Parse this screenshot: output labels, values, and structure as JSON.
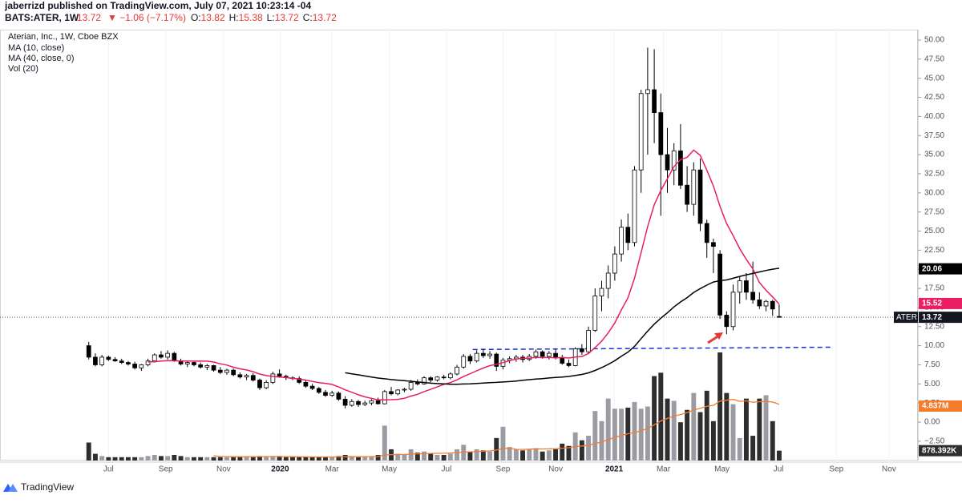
{
  "header": {
    "publisher": "jaberrizd published on TradingView.com, July 07, 2021 10:23:14 -04",
    "symbol": "BATS:ATER, 1W",
    "price": "13.72",
    "change": "▼ −1.06 (−7.17%)",
    "ohlc": [
      {
        "k": "O:",
        "v": "13.82"
      },
      {
        "k": "H:",
        "v": "15.38"
      },
      {
        "k": "L:",
        "v": "13.72"
      },
      {
        "k": "C:",
        "v": "13.72"
      }
    ]
  },
  "footer": {
    "brand": "TradingView"
  },
  "chart_data": {
    "type": "candlestick",
    "title": "Aterian, Inc., 1W, Cboe BZX",
    "legend": [
      "MA (10, close)",
      "MA (40, close, 0)",
      "Vol (20)"
    ],
    "candles": {
      "open": [
        10.0,
        8.5,
        7.5,
        8.5,
        8.2,
        8.0,
        7.8,
        7.6,
        7.1,
        7.5,
        8.0,
        8.8,
        8.5,
        9.0,
        8.0,
        7.6,
        7.8,
        7.5,
        7.2,
        7.4,
        6.8,
        6.5,
        6.8,
        6.2,
        5.9,
        6.1,
        5.5,
        4.5,
        5.2,
        6.3,
        6.0,
        5.8,
        5.7,
        5.2,
        4.7,
        4.4,
        3.9,
        3.5,
        3.8,
        3.0,
        2.2,
        2.7,
        2.3,
        2.5,
        2.8,
        2.4,
        4.0,
        3.7,
        4.2,
        4.3,
        5.2,
        5.0,
        5.8,
        5.5,
        5.9,
        5.8,
        6.3,
        7.2,
        8.6,
        8.0,
        9.0,
        8.7,
        8.9,
        7.3,
        8.1,
        8.3,
        8.5,
        8.2,
        8.6,
        9.2,
        8.6,
        9.0,
        8.4,
        7.7,
        7.4,
        9.6,
        9.2,
        12.0,
        16.5,
        17.5,
        19.5,
        22.0,
        25.5,
        23.5,
        33.0,
        43.0,
        43.5,
        40.5,
        35.0,
        33.0,
        35.5,
        31.0,
        28.5,
        33.0,
        26.0,
        23.5,
        22.0,
        14.0,
        12.5,
        17.0,
        18.5,
        17.0,
        16.0,
        15.2,
        15.8,
        13.82
      ],
      "high": [
        10.5,
        9.0,
        8.8,
        8.7,
        8.5,
        8.3,
        8.0,
        7.9,
        7.6,
        8.3,
        9.0,
        9.3,
        9.4,
        9.2,
        8.3,
        8.0,
        8.0,
        7.8,
        7.6,
        7.5,
        7.2,
        7.0,
        7.0,
        6.5,
        6.3,
        6.4,
        5.7,
        5.5,
        6.6,
        6.9,
        6.2,
        6.0,
        6.0,
        5.5,
        5.0,
        4.6,
        4.2,
        4.1,
        4.0,
        3.4,
        3.0,
        2.9,
        2.8,
        3.0,
        3.2,
        4.2,
        4.6,
        4.3,
        4.5,
        5.5,
        5.6,
        6.0,
        6.0,
        6.0,
        6.2,
        6.5,
        7.5,
        8.9,
        8.9,
        9.4,
        9.6,
        9.3,
        9.1,
        8.4,
        8.6,
        8.8,
        8.8,
        8.9,
        9.5,
        9.4,
        9.3,
        9.6,
        8.8,
        8.2,
        9.8,
        10.2,
        12.5,
        17.5,
        18.5,
        20.5,
        23.0,
        26.5,
        27.3,
        33.5,
        43.5,
        49.0,
        48.8,
        43.0,
        38.5,
        36.5,
        39.0,
        33.5,
        34.0,
        34.5,
        26.5,
        24.0,
        22.5,
        14.5,
        18.0,
        19.0,
        19.5,
        21.0,
        17.0,
        16.0,
        16.0,
        15.38
      ],
      "low": [
        8.2,
        7.3,
        7.3,
        8.0,
        7.9,
        7.6,
        7.4,
        6.9,
        6.7,
        7.3,
        7.8,
        8.3,
        8.2,
        7.9,
        7.4,
        7.2,
        7.3,
        7.0,
        6.8,
        6.6,
        6.3,
        6.2,
        6.0,
        5.7,
        5.5,
        5.3,
        4.2,
        4.3,
        5.0,
        5.8,
        5.5,
        5.5,
        5.0,
        4.5,
        4.2,
        3.7,
        3.3,
        3.3,
        2.8,
        1.8,
        2.0,
        2.0,
        2.1,
        2.2,
        2.3,
        2.3,
        3.5,
        3.5,
        3.9,
        4.1,
        4.8,
        4.9,
        5.2,
        5.3,
        5.6,
        5.6,
        6.1,
        7.0,
        7.6,
        7.8,
        8.4,
        8.3,
        6.7,
        6.9,
        7.7,
        7.9,
        7.8,
        8.0,
        8.3,
        8.3,
        8.2,
        8.2,
        7.5,
        7.2,
        7.3,
        8.8,
        9.0,
        11.8,
        14.5,
        16.2,
        18.5,
        21.0,
        22.5,
        23.0,
        30.0,
        35.0,
        36.5,
        27.0,
        30.0,
        31.0,
        30.5,
        27.5,
        27.0,
        25.0,
        21.5,
        19.5,
        13.5,
        11.5,
        12.0,
        15.5,
        16.0,
        15.5,
        14.8,
        14.5,
        13.9,
        13.72
      ],
      "close": [
        8.5,
        7.5,
        8.5,
        8.2,
        8.0,
        7.8,
        7.6,
        7.1,
        7.5,
        8.0,
        8.8,
        8.5,
        9.0,
        8.0,
        7.6,
        7.8,
        7.5,
        7.2,
        7.4,
        6.8,
        6.5,
        6.8,
        6.2,
        5.9,
        6.1,
        5.5,
        4.5,
        5.2,
        6.3,
        6.0,
        5.8,
        5.7,
        5.2,
        4.7,
        4.4,
        3.9,
        3.5,
        3.8,
        3.0,
        2.2,
        2.7,
        2.3,
        2.5,
        2.8,
        2.4,
        4.0,
        3.7,
        4.2,
        4.3,
        5.2,
        5.0,
        5.8,
        5.5,
        5.9,
        5.8,
        6.3,
        7.2,
        8.6,
        8.0,
        9.0,
        8.7,
        8.9,
        7.3,
        8.1,
        8.3,
        8.5,
        8.2,
        8.6,
        9.2,
        8.6,
        9.0,
        8.4,
        7.7,
        7.4,
        9.6,
        9.2,
        12.0,
        16.5,
        17.5,
        19.5,
        22.0,
        25.5,
        23.5,
        33.0,
        43.0,
        43.5,
        40.5,
        35.0,
        33.0,
        35.5,
        31.0,
        28.5,
        33.0,
        26.0,
        23.5,
        23.0,
        14.0,
        12.5,
        17.0,
        18.5,
        17.0,
        16.0,
        15.2,
        15.8,
        14.8,
        13.72
      ]
    },
    "volume": [
      1.6,
      0.6,
      0.4,
      0.3,
      0.3,
      0.3,
      0.3,
      0.3,
      0.3,
      0.4,
      0.5,
      0.4,
      0.4,
      0.5,
      0.4,
      0.3,
      0.3,
      0.3,
      0.3,
      0.3,
      0.3,
      0.3,
      0.3,
      0.3,
      0.3,
      0.3,
      0.4,
      0.4,
      0.4,
      0.4,
      0.3,
      0.3,
      0.3,
      0.3,
      0.3,
      0.3,
      0.3,
      0.3,
      0.4,
      0.5,
      0.4,
      0.3,
      0.3,
      0.4,
      0.5,
      3.1,
      1.0,
      0.6,
      0.5,
      1.0,
      0.7,
      0.8,
      0.6,
      0.5,
      0.5,
      0.6,
      1.0,
      1.4,
      0.8,
      1.0,
      0.9,
      0.8,
      2.0,
      3.0,
      1.2,
      1.0,
      0.9,
      1.0,
      1.1,
      0.8,
      0.9,
      1.0,
      1.5,
      1.3,
      2.5,
      1.8,
      2.2,
      4.4,
      3.5,
      5.5,
      4.6,
      4.6,
      4.7,
      5.2,
      4.6,
      4.8,
      7.5,
      7.8,
      5.5,
      5.3,
      3.4,
      4.5,
      6.0,
      4.3,
      6.2,
      3.5,
      9.6,
      6.0,
      5.0,
      2.0,
      5.5,
      2.2,
      5.5,
      5.8,
      3.5,
      0.878392
    ],
    "colors": {
      "up_body": "#ffffff",
      "down_body": "#000000",
      "outline": "#000000",
      "up_volume": "#9b9ba3",
      "down_volume": "#2e2e2e",
      "ma10": "#e91e63",
      "ma40": "#000000",
      "vol_ma": "#f57c2b",
      "level": "#1f2bd6"
    },
    "ma_periods": {
      "ma10": 10,
      "ma40": 40,
      "vol_ma": 20
    },
    "value_tags": [
      {
        "value": 15.52,
        "color": "ma10"
      },
      {
        "value": 20.06,
        "color": "ma40"
      }
    ],
    "last_tag": {
      "name": "ATER",
      "value": 13.72
    },
    "vol_tags": [
      {
        "value": 4.837,
        "label": "4.837M",
        "color": "vol_ma"
      },
      {
        "value": 0.878392,
        "label": "878.392K",
        "color": "down_volume"
      }
    ],
    "level_line": {
      "x": [
        58.4,
        112.8
      ],
      "y": [
        9.5,
        9.8
      ]
    },
    "xlim": [
      -13.5,
      126.1
    ],
    "xticks": [
      {
        "value": 3,
        "label": "Jul"
      },
      {
        "value": 11.7,
        "label": "Sep"
      },
      {
        "value": 20.5,
        "label": "Nov"
      },
      {
        "value": 29.1,
        "label": "2020"
      },
      {
        "value": 37,
        "label": "Mar"
      },
      {
        "value": 45.7,
        "label": "May"
      },
      {
        "value": 54.4,
        "label": "Jul"
      },
      {
        "value": 63,
        "label": "Sep"
      },
      {
        "value": 71,
        "label": "Nov"
      },
      {
        "value": 79.9,
        "label": "2021"
      },
      {
        "value": 87.4,
        "label": "Mar"
      },
      {
        "value": 96.3,
        "label": "May"
      },
      {
        "value": 104.9,
        "label": "Jul"
      },
      {
        "value": 113.7,
        "label": "Sep"
      },
      {
        "value": 121.7,
        "label": "Nov"
      }
    ],
    "ylim": [
      -5.03,
      51.36
    ],
    "yticks": [
      {
        "value": 50,
        "label": "50.00"
      },
      {
        "value": 47.5,
        "label": "47.50"
      },
      {
        "value": 45,
        "label": "45.00"
      },
      {
        "value": 42.5,
        "label": "42.50"
      },
      {
        "value": 40,
        "label": "40.00"
      },
      {
        "value": 37.5,
        "label": "37.50"
      },
      {
        "value": 35,
        "label": "35.00"
      },
      {
        "value": 32.5,
        "label": "32.50"
      },
      {
        "value": 30,
        "label": "30.00"
      },
      {
        "value": 27.5,
        "label": "27.50"
      },
      {
        "value": 25,
        "label": "25.00"
      },
      {
        "value": 22.5,
        "label": "22.50"
      },
      {
        "value": 20,
        "label": "20.00"
      },
      {
        "value": 17.5,
        "label": "17.50"
      },
      {
        "value": 15,
        "label": "15.00"
      },
      {
        "value": 12.5,
        "label": "12.50"
      },
      {
        "value": 10,
        "label": "10.00"
      },
      {
        "value": 7.5,
        "label": "7.50"
      },
      {
        "value": 5,
        "label": "5.00"
      },
      {
        "value": 2.5,
        "label": "2.50"
      },
      {
        "value": 0,
        "label": "0.00"
      },
      {
        "value": -2.5,
        "label": "−2.50"
      }
    ],
    "vol_ylim": [
      0,
      38.26
    ],
    "grid": true
  }
}
